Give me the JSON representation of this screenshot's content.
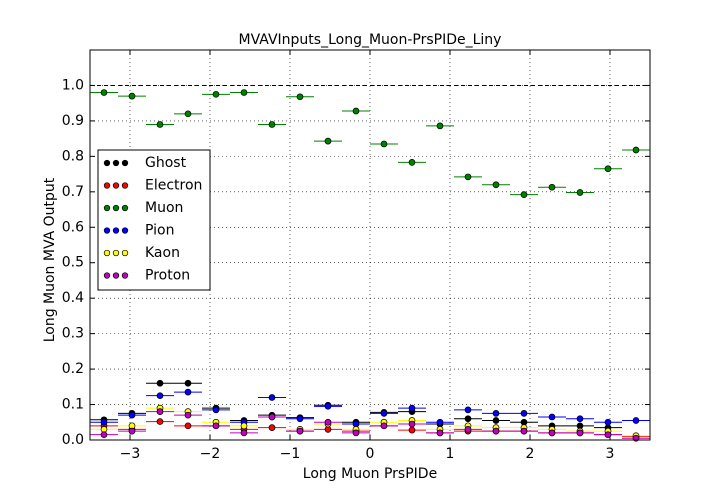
{
  "chart_data": {
    "type": "binned-scatter",
    "title": "MVAVInputs_Long_Muon-PrsPIDe_Liny",
    "x_label": "Long Muon PrsPIDe",
    "y_label": "Long Muon MVA Output",
    "bins": [
      -3.5,
      -3.15,
      -2.8,
      -2.45,
      -2.1,
      -1.75,
      -1.4,
      -1.05,
      -0.7,
      -0.35,
      0,
      0.35,
      0.7,
      1.05,
      1.4,
      1.75,
      2.1,
      2.45,
      2.8,
      3.15,
      3.5
    ],
    "series": [
      {
        "name": "Ghost",
        "color": "#000000",
        "values": [
          0.057,
          0.075,
          0.16,
          0.16,
          0.09,
          0.055,
          0.07,
          0.063,
          0.098,
          0.05,
          0.078,
          0.08,
          0.045,
          0.06,
          0.055,
          0.05,
          0.04,
          0.04,
          0.035,
          0.01
        ]
      },
      {
        "name": "Electron",
        "color": "#ff0000",
        "values": [
          0.04,
          0.03,
          0.052,
          0.04,
          0.04,
          0.03,
          0.035,
          0.025,
          0.03,
          0.025,
          0.04,
          0.028,
          0.02,
          0.025,
          0.025,
          0.025,
          0.02,
          0.02,
          0.015,
          0.01
        ]
      },
      {
        "name": "Muon",
        "color": "#008000",
        "values": [
          0.98,
          0.97,
          0.89,
          0.92,
          0.975,
          0.98,
          0.89,
          0.968,
          0.843,
          0.928,
          0.835,
          0.783,
          0.886,
          0.742,
          0.72,
          0.692,
          0.713,
          0.698,
          0.765,
          0.818
        ]
      },
      {
        "name": "Pion",
        "color": "#0000ff",
        "values": [
          0.05,
          0.07,
          0.125,
          0.135,
          0.085,
          0.05,
          0.12,
          0.06,
          0.095,
          0.045,
          0.075,
          0.09,
          0.05,
          0.085,
          0.075,
          0.075,
          0.065,
          0.06,
          0.05,
          0.055
        ]
      },
      {
        "name": "Kaon",
        "color": "#ffff00",
        "values": [
          0.03,
          0.04,
          0.09,
          0.08,
          0.05,
          0.04,
          0.065,
          0.03,
          0.045,
          0.03,
          0.05,
          0.055,
          0.03,
          0.04,
          0.035,
          0.035,
          0.03,
          0.025,
          0.025,
          0.012
        ]
      },
      {
        "name": "Proton",
        "color": "#bf00bf",
        "values": [
          0.015,
          0.025,
          0.08,
          0.07,
          0.04,
          0.02,
          0.065,
          0.025,
          0.05,
          0.02,
          0.04,
          0.045,
          0.02,
          0.03,
          0.025,
          0.025,
          0.02,
          0.02,
          0.015,
          0.005
        ]
      }
    ],
    "xlim": [
      -3.5,
      3.5
    ],
    "ylim": [
      0,
      1.1
    ],
    "xticks": [
      {
        "value": -3,
        "label": "−3"
      },
      {
        "value": -2,
        "label": "−2"
      },
      {
        "value": -1,
        "label": "−1"
      },
      0,
      1,
      2,
      3
    ],
    "yticks": [
      {
        "value": 0,
        "label": "0.0"
      },
      {
        "value": 0.1,
        "label": "0.1"
      },
      {
        "value": 0.2,
        "label": "0.2"
      },
      {
        "value": 0.3,
        "label": "0.3"
      },
      {
        "value": 0.4,
        "label": "0.4"
      },
      {
        "value": 0.5,
        "label": "0.5"
      },
      {
        "value": 0.6,
        "label": "0.6"
      },
      {
        "value": 0.7,
        "label": "0.7"
      },
      {
        "value": 0.8,
        "label": "0.8"
      },
      {
        "value": 0.9,
        "label": "0.9"
      },
      {
        "value": 1,
        "label": "1.0"
      }
    ],
    "hline": 1,
    "grid": true,
    "legend": "center left"
  }
}
